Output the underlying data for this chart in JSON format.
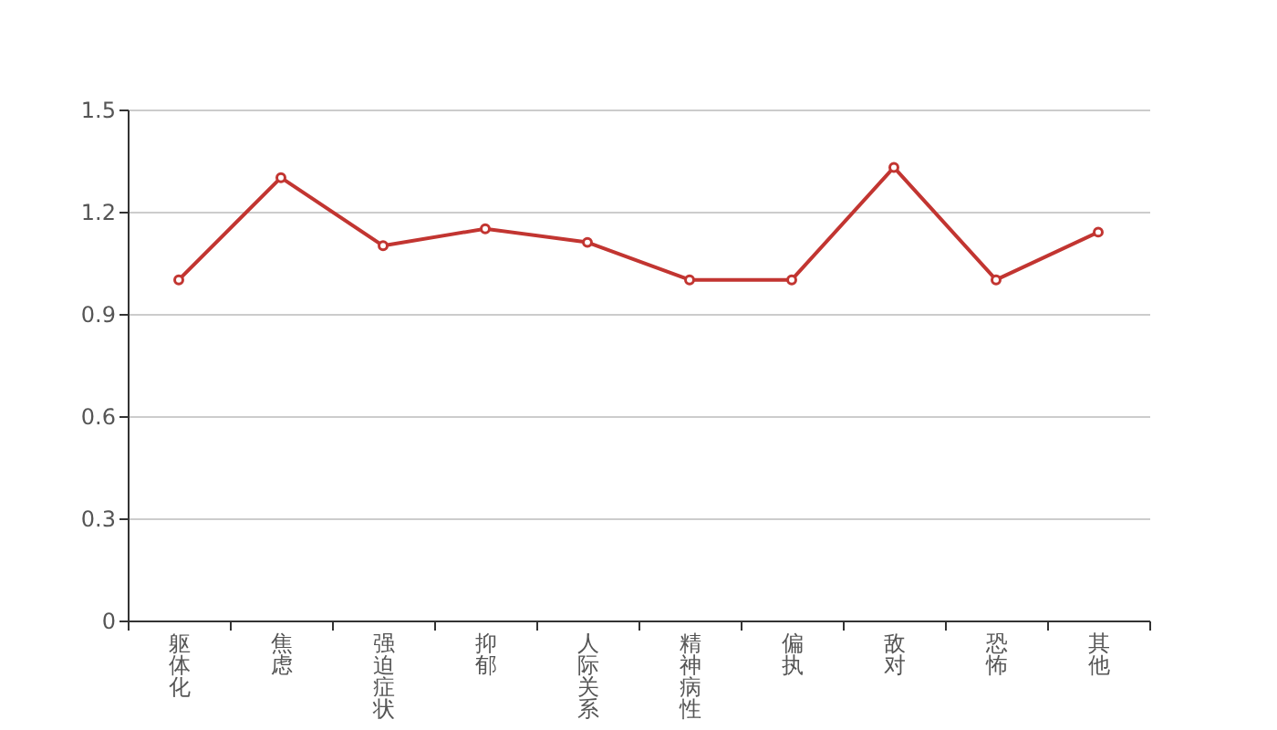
{
  "chart_data": {
    "type": "line",
    "categories": [
      "躯体化",
      "焦虑",
      "强迫症状",
      "抑郁",
      "人际关系",
      "精神病性",
      "偏执",
      "敌对",
      "恐怖",
      "其他"
    ],
    "series": [
      {
        "color": "#c23531",
        "values": [
          1.0,
          1.3,
          1.1,
          1.15,
          1.11,
          1.0,
          1.0,
          1.33,
          1.0,
          1.14
        ]
      }
    ],
    "ylim": [
      0,
      1.5
    ],
    "yticks": [
      0,
      0.3,
      0.6,
      0.9,
      1.2,
      1.5
    ],
    "grid": "y",
    "marker": "circle"
  }
}
